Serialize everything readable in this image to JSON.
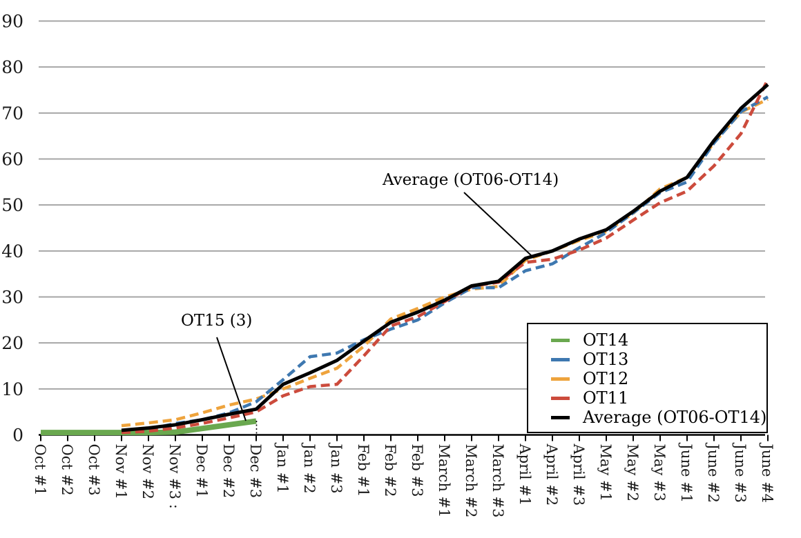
{
  "chart_data": {
    "type": "line",
    "title": "",
    "categories": [
      "Oct #1",
      "Oct #2",
      "Oct #3",
      "Nov #1",
      "Nov #2",
      "Nov #3",
      "Dec #1",
      "Dec #2",
      "Dec #3",
      "Jan #1",
      "Jan #2",
      "Jan #3",
      "Feb #1",
      "Feb #2",
      "Feb #3",
      "March #1",
      "March #2",
      "March #3",
      "April #1",
      "April #2",
      "April #3",
      "May #1",
      "May #2",
      "May #3",
      "June #1",
      "June #2",
      "June #3",
      "June #4"
    ],
    "category_mark": {
      "index": 5,
      "text": ":"
    },
    "y_ticks": [
      0,
      10,
      20,
      30,
      40,
      50,
      60,
      70,
      80,
      90
    ],
    "ylim": [
      0,
      90
    ],
    "grid": true,
    "legend_position": "bottom-right",
    "series": [
      {
        "name": "OT14",
        "color": "#6aa84f",
        "line_style": "solid",
        "thickness": 8,
        "values": [
          0.5,
          0.5,
          0.5,
          0.5,
          0.5,
          0.6,
          1.4,
          2.2,
          3,
          null,
          null,
          null,
          null,
          null,
          null,
          null,
          null,
          null,
          null,
          null,
          null,
          null,
          null,
          null,
          null,
          null,
          null,
          null
        ]
      },
      {
        "name": "OT12",
        "color": "#eea33c",
        "line_style": "dashed",
        "thickness": 4.5,
        "values": [
          null,
          null,
          null,
          2,
          2.6,
          3.3,
          4.8,
          6.5,
          7.8,
          10,
          12.3,
          14.5,
          19.3,
          25.2,
          27.5,
          30,
          31.7,
          32.3,
          38,
          40,
          42.3,
          44.2,
          48.2,
          53.5,
          56,
          63.5,
          70.2,
          73
        ]
      },
      {
        "name": "OT13",
        "color": "#3e78b0",
        "line_style": "dashed",
        "thickness": 4.5,
        "values": [
          null,
          null,
          null,
          0.8,
          1.2,
          2.5,
          3.3,
          4.8,
          7.2,
          12,
          17,
          17.8,
          20.7,
          23,
          25,
          28.7,
          32,
          32,
          35.7,
          37.2,
          40.7,
          44,
          48.3,
          52.7,
          55,
          63.5,
          70.3,
          73.5
        ]
      },
      {
        "name": "OT11",
        "color": "#cc4b3c",
        "line_style": "dashed",
        "thickness": 4.5,
        "values": [
          null,
          null,
          null,
          0.5,
          0.8,
          1.5,
          2.5,
          3.7,
          5,
          8.5,
          10.5,
          11,
          17.2,
          23.7,
          25.7,
          29,
          32.3,
          33.2,
          37.5,
          38.2,
          40.2,
          42.8,
          46.7,
          50.5,
          53,
          58.5,
          65.5,
          77.3
        ]
      },
      {
        "name": "Average (OT06-OT14)",
        "color": "#000000",
        "line_style": "solid",
        "thickness": 5,
        "values": [
          null,
          null,
          null,
          1,
          1.5,
          2.2,
          3.3,
          4.5,
          5.6,
          11,
          13.5,
          16.2,
          20.4,
          24.5,
          26.7,
          29.3,
          32.4,
          33.4,
          38.4,
          40,
          42.6,
          44.6,
          48.6,
          53,
          56,
          64,
          71,
          76.2
        ]
      }
    ],
    "legend_order": [
      "OT14",
      "OT13",
      "OT12",
      "OT11",
      "Average (OT06-OT14)"
    ],
    "annotations": [
      {
        "id": "ot15",
        "text": "OT15 (3)"
      },
      {
        "id": "average",
        "text": "Average (OT06-OT14)"
      }
    ]
  },
  "colors": {
    "gridline": "#a6a6a6",
    "axis": "#000000",
    "background": "#ffffff"
  }
}
